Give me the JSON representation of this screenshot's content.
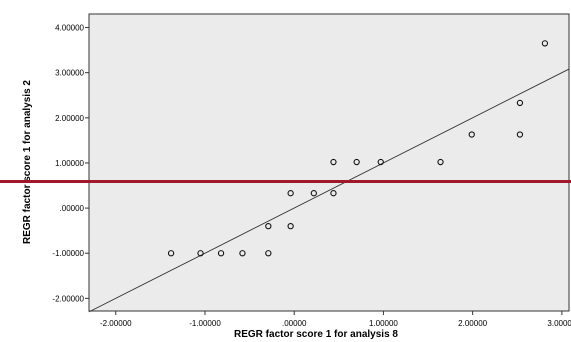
{
  "chart_data": {
    "type": "scatter",
    "xlabel": "REGR factor score   1 for analysis 8",
    "ylabel": "REGR factor score   1 for analysis 2",
    "xlim": [
      -2.3,
      3.08
    ],
    "ylim": [
      -2.28,
      4.3
    ],
    "x_ticks": [
      {
        "value": -2,
        "label": "-2.00000"
      },
      {
        "value": -1,
        "label": "-1.00000"
      },
      {
        "value": 0,
        "label": ".00000"
      },
      {
        "value": 1,
        "label": "1.00000"
      },
      {
        "value": 2,
        "label": "2.00000"
      },
      {
        "value": 3,
        "label": "3.00000"
      }
    ],
    "y_ticks": [
      {
        "value": -2,
        "label": "-2.00000"
      },
      {
        "value": -1,
        "label": "-1.00000"
      },
      {
        "value": 0,
        "label": ".00000"
      },
      {
        "value": 1,
        "label": "1.00000"
      },
      {
        "value": 2,
        "label": "2.00000"
      },
      {
        "value": 3,
        "label": "3.00000"
      },
      {
        "value": 4,
        "label": "4.00000"
      }
    ],
    "grid": false,
    "points": [
      {
        "x": -1.38,
        "y": -1.0
      },
      {
        "x": -1.05,
        "y": -1.0
      },
      {
        "x": -0.82,
        "y": -1.0
      },
      {
        "x": -0.58,
        "y": -1.0
      },
      {
        "x": -0.29,
        "y": -1.0
      },
      {
        "x": -0.29,
        "y": -0.4
      },
      {
        "x": -0.04,
        "y": -0.4
      },
      {
        "x": -0.04,
        "y": 0.33
      },
      {
        "x": 0.22,
        "y": 0.33
      },
      {
        "x": 0.44,
        "y": 0.33
      },
      {
        "x": 0.44,
        "y": 1.02
      },
      {
        "x": 0.7,
        "y": 1.02
      },
      {
        "x": 0.97,
        "y": 1.02
      },
      {
        "x": 1.64,
        "y": 1.02
      },
      {
        "x": 1.99,
        "y": 1.63
      },
      {
        "x": 2.53,
        "y": 1.63
      },
      {
        "x": 2.53,
        "y": 2.33
      },
      {
        "x": 2.81,
        "y": 3.65
      }
    ],
    "reference_line": {
      "slope": 1,
      "intercept": 0,
      "color": "#333333"
    },
    "horizontal_line": {
      "y": 0.55,
      "color": "#a0182c"
    },
    "colors": {
      "plot_background": "#ebebeb",
      "marker": "#111111"
    }
  }
}
